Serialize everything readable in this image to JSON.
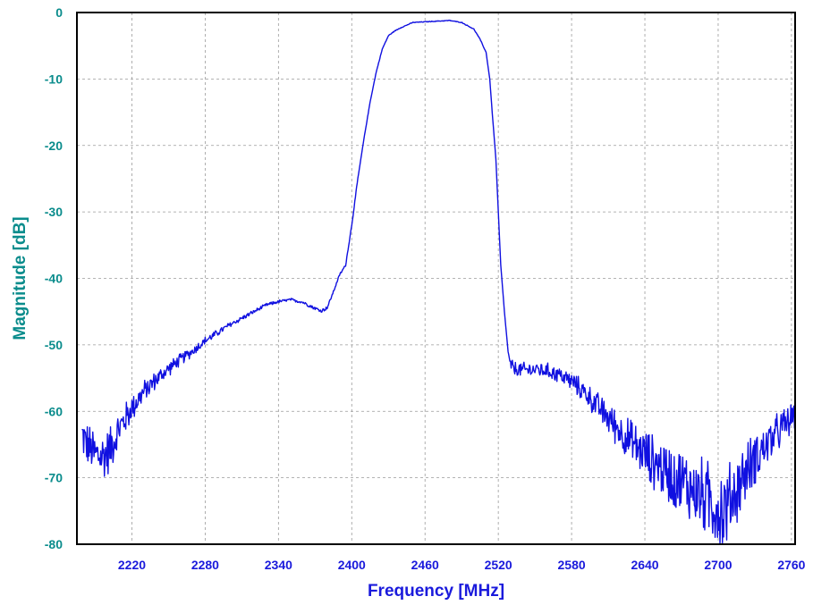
{
  "chart_data": {
    "type": "line",
    "xlabel": "Frequency [MHz]",
    "ylabel": "Magnitude [dB]",
    "xlim": [
      2175,
      2763
    ],
    "ylim": [
      -80,
      0
    ],
    "x_ticks": [
      2220,
      2280,
      2340,
      2400,
      2460,
      2520,
      2580,
      2640,
      2700,
      2760
    ],
    "y_ticks": [
      0,
      -10,
      -20,
      -30,
      -40,
      -50,
      -60,
      -70,
      -80
    ],
    "grid": true,
    "colors": {
      "line": "#1010e0",
      "x_text": "#1a1adc",
      "y_text": "#0a8c8c",
      "grid": "#9a9a9a"
    },
    "series": [
      {
        "x": [
          2179,
          2185,
          2190,
          2195,
          2200,
          2205,
          2210,
          2220,
          2230,
          2240,
          2250,
          2260,
          2270,
          2280,
          2290,
          2300,
          2310,
          2320,
          2330,
          2340,
          2350,
          2360,
          2370,
          2375,
          2380,
          2385,
          2390,
          2395,
          2400,
          2405,
          2410,
          2415,
          2420,
          2425,
          2430,
          2435,
          2440,
          2450,
          2460,
          2470,
          2480,
          2490,
          2500,
          2505,
          2510,
          2513,
          2515,
          2518,
          2520,
          2522,
          2525,
          2528,
          2530,
          2533,
          2535,
          2540,
          2550,
          2560,
          2570,
          2580,
          2590,
          2600,
          2610,
          2620,
          2630,
          2640,
          2650,
          2660,
          2670,
          2680,
          2690,
          2700,
          2705,
          2710,
          2720,
          2730,
          2740,
          2750,
          2763
        ],
        "values": [
          -63.5,
          -65.5,
          -66.5,
          -66.8,
          -66.2,
          -64.5,
          -62.5,
          -59.5,
          -57.0,
          -55.2,
          -53.6,
          -52.2,
          -50.9,
          -49.4,
          -48.2,
          -47.0,
          -46.0,
          -45.0,
          -44.0,
          -43.5,
          -43.2,
          -43.6,
          -44.5,
          -44.9,
          -44.4,
          -42.0,
          -39.5,
          -38.0,
          -32.0,
          -25.0,
          -19.0,
          -13.5,
          -9.0,
          -5.5,
          -3.5,
          -2.8,
          -2.3,
          -1.5,
          -1.4,
          -1.3,
          -1.2,
          -1.5,
          -2.5,
          -4.0,
          -6.0,
          -10.0,
          -15.0,
          -22.0,
          -30.0,
          -38.0,
          -45.0,
          -51.0,
          -53.0,
          -53.6,
          -53.7,
          -53.8,
          -53.7,
          -53.9,
          -54.5,
          -55.5,
          -57.0,
          -59.0,
          -61.0,
          -63.0,
          -64.8,
          -66.5,
          -68.0,
          -69.5,
          -70.5,
          -71.8,
          -73.0,
          -74.5,
          -75.0,
          -73.5,
          -70.0,
          -67.0,
          -65.0,
          -63.0,
          -60.5
        ],
        "noise_start_level": -63.5
      }
    ]
  }
}
